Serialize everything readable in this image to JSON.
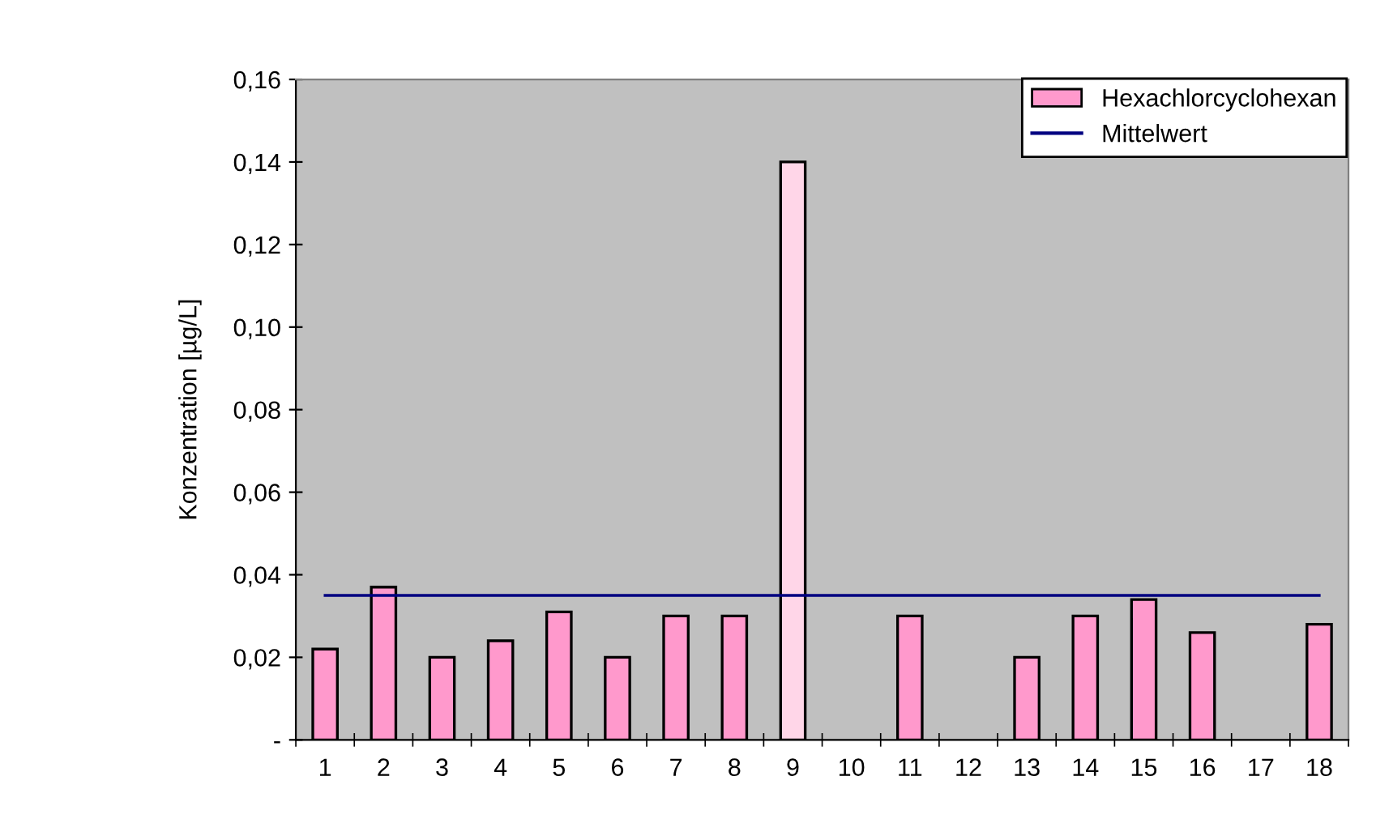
{
  "chart_data": {
    "type": "bar",
    "ylabel": "Konzentration [µg/L]",
    "categories": [
      "1",
      "2",
      "3",
      "4",
      "5",
      "6",
      "7",
      "8",
      "9",
      "10",
      "11",
      "12",
      "13",
      "14",
      "15",
      "16",
      "17",
      "18"
    ],
    "series": [
      {
        "name": "Hexachlorcyclohexan",
        "color": "#ff99cc",
        "colors": [
          "#ff99cc",
          "#ff99cc",
          "#ff99cc",
          "#ff99cc",
          "#ff99cc",
          "#ff99cc",
          "#ff99cc",
          "#ff99cc",
          "#ffd6e8",
          "#ff99cc",
          "#ff99cc",
          "#ff99cc",
          "#ff99cc",
          "#ff99cc",
          "#ff99cc",
          "#ff99cc",
          "#ff99cc",
          "#ff99cc"
        ],
        "values": [
          0.022,
          0.037,
          0.02,
          0.024,
          0.031,
          0.02,
          0.03,
          0.03,
          0.14,
          null,
          0.03,
          null,
          0.02,
          0.03,
          0.034,
          0.026,
          null,
          0.028
        ]
      }
    ],
    "ref_lines": [
      {
        "axis": "y",
        "value": 0.035,
        "label": "Mittelwert",
        "color": "#000080",
        "line_style": "solid"
      }
    ],
    "ylim": [
      0,
      0.16
    ],
    "yticks": [
      {
        "value": 0,
        "label": "-"
      },
      {
        "value": 0.02,
        "label": "0,02"
      },
      {
        "value": 0.04,
        "label": "0,04"
      },
      {
        "value": 0.06,
        "label": "0,06"
      },
      {
        "value": 0.08,
        "label": "0,08"
      },
      {
        "value": 0.1,
        "label": "0,10"
      },
      {
        "value": 0.12,
        "label": "0,12"
      },
      {
        "value": 0.14,
        "label": "0,14"
      },
      {
        "value": 0.16,
        "label": "0,16"
      }
    ],
    "grid": false,
    "legend": "top right"
  }
}
